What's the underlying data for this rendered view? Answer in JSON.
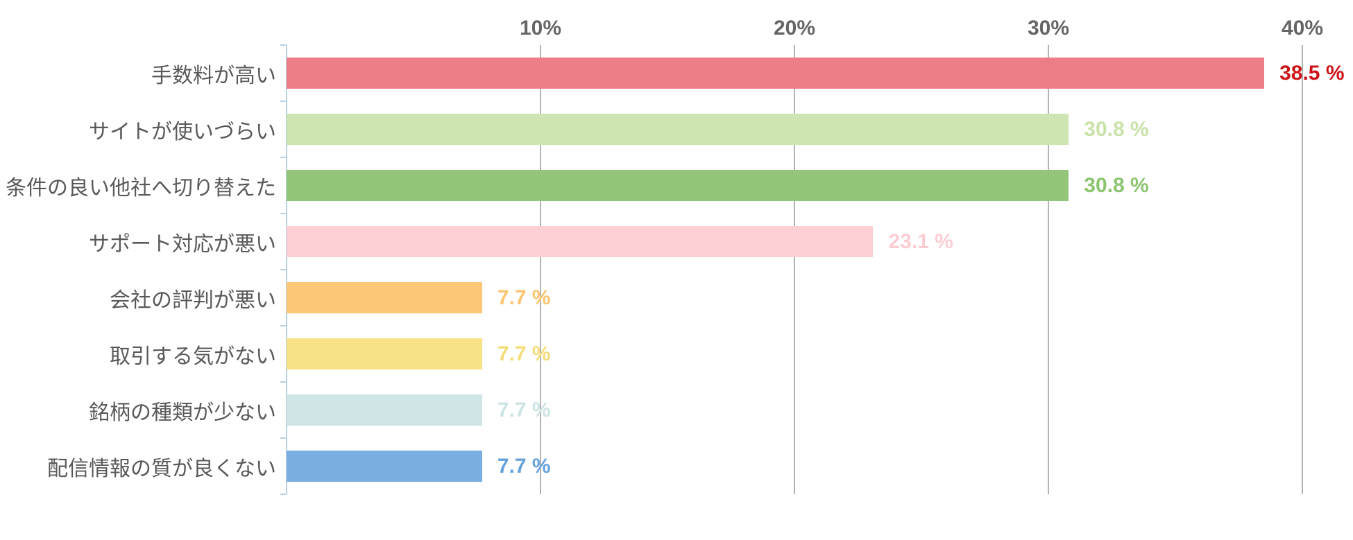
{
  "chart_data": {
    "type": "bar",
    "orientation": "horizontal",
    "title": "",
    "categories": [
      "手数料が高い",
      "サイトが使いづらい",
      "条件の良い他社へ切り替えた",
      "サポート対応が悪い",
      "会社の評判が悪い",
      "取引する気がない",
      "銘柄の種類が少ない",
      "配信情報の質が良くない"
    ],
    "values": [
      38.5,
      30.8,
      30.8,
      23.1,
      7.7,
      7.7,
      7.7,
      7.7
    ],
    "value_labels": [
      "38.5 %",
      "30.8 %",
      "30.8 %",
      "23.1 %",
      "7.7 %",
      "7.7 %",
      "7.7 %",
      "7.7 %"
    ],
    "bar_colors": [
      "#ed7d87",
      "#cee5b1",
      "#93c678",
      "#fccfd3",
      "#fcc878",
      "#f8e286",
      "#cfe5e6",
      "#7aade2"
    ],
    "value_label_colors": [
      "#cc1418",
      "#c9e2a8",
      "#8cc46f",
      "#fbcdd2",
      "#fbc571",
      "#f5dc7a",
      "#cde4e4",
      "#65a2dc"
    ],
    "x_axis": {
      "position": "top",
      "tick_labels": [
        "10%",
        "20%",
        "30%",
        "40%"
      ],
      "tick_values": [
        10,
        20,
        30,
        40
      ],
      "range": [
        0,
        40
      ],
      "grid": true
    },
    "y_axis": {
      "position": "left",
      "ticks_at_row_boundaries": true
    },
    "legend": null,
    "colors": {
      "gridline": "#b3b3b3",
      "axis_line": "#b9cfe2",
      "category_label": "#595959",
      "tick_label": "#666666",
      "background": "#ffffff"
    }
  }
}
